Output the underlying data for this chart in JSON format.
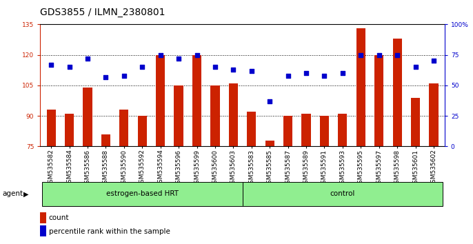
{
  "title": "GDS3855 / ILMN_2380801",
  "samples": [
    "GSM535582",
    "GSM535584",
    "GSM535586",
    "GSM535588",
    "GSM535590",
    "GSM535592",
    "GSM535594",
    "GSM535596",
    "GSM535599",
    "GSM535600",
    "GSM535603",
    "GSM535583",
    "GSM535585",
    "GSM535587",
    "GSM535589",
    "GSM535591",
    "GSM535593",
    "GSM535595",
    "GSM535597",
    "GSM535598",
    "GSM535601",
    "GSM535602"
  ],
  "counts": [
    93,
    91,
    104,
    81,
    93,
    90,
    120,
    105,
    120,
    105,
    106,
    92,
    78,
    90,
    91,
    90,
    91,
    133,
    120,
    128,
    99,
    106
  ],
  "percentiles": [
    67,
    65,
    72,
    57,
    58,
    65,
    75,
    72,
    75,
    65,
    63,
    62,
    37,
    58,
    60,
    58,
    60,
    75,
    75,
    75,
    65,
    70
  ],
  "group1_label": "estrogen-based HRT",
  "group1_count": 11,
  "group2_label": "control",
  "group2_count": 11,
  "ylim_left": [
    75,
    135
  ],
  "ylim_right": [
    0,
    100
  ],
  "yticks_left": [
    75,
    90,
    105,
    120,
    135
  ],
  "yticks_right": [
    0,
    25,
    50,
    75,
    100
  ],
  "ytick_labels_right": [
    "0",
    "25",
    "50",
    "75",
    "100%"
  ],
  "bar_color": "#CC2200",
  "dot_color": "#0000CC",
  "bg_plot": "#ffffff",
  "bg_group": "#90EE90",
  "title_fontsize": 10,
  "tick_fontsize": 6.5,
  "agent_label": "agent",
  "grid_lines": [
    90,
    105,
    120
  ]
}
